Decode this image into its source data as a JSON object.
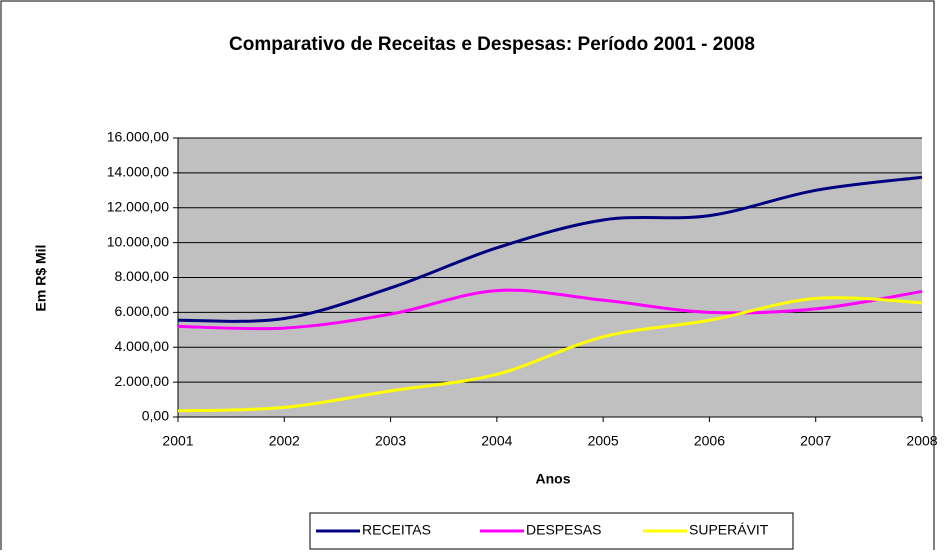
{
  "chart_data": {
    "type": "line",
    "title": "Comparativo de Receitas e Despesas: Período 2001 - 2008",
    "x_label": "Anos",
    "y_label": "Em R$ Mil",
    "x": [
      2001,
      2002,
      2003,
      2004,
      2005,
      2006,
      2007,
      2008
    ],
    "series": [
      {
        "name": "RECEITAS",
        "color": "#000080",
        "values": [
          5550,
          5650,
          7400,
          9700,
          11300,
          11550,
          13000,
          13750
        ]
      },
      {
        "name": "DESPESAS",
        "color": "#ff00ff",
        "values": [
          5200,
          5100,
          5900,
          7250,
          6700,
          6000,
          6200,
          7200
        ]
      },
      {
        "name": "SUPERÁVIT",
        "color": "#ffff00",
        "values": [
          350,
          550,
          1500,
          2450,
          4600,
          5550,
          6800,
          6550
        ]
      }
    ],
    "xlim": [
      2001,
      2008
    ],
    "xticks": [
      2001,
      2002,
      2003,
      2004,
      2005,
      2006,
      2007,
      2008
    ],
    "ylim": [
      0,
      16000
    ],
    "yticks": [
      {
        "value": 0,
        "label": "0,00"
      },
      {
        "value": 2000,
        "label": "2.000,00"
      },
      {
        "value": 4000,
        "label": "4.000,00"
      },
      {
        "value": 6000,
        "label": "6.000,00"
      },
      {
        "value": 8000,
        "label": "8.000,00"
      },
      {
        "value": 10000,
        "label": "10.000,00"
      },
      {
        "value": 12000,
        "label": "12.000,00"
      },
      {
        "value": 14000,
        "label": "14.000,00"
      },
      {
        "value": 16000,
        "label": "16.000,00"
      }
    ],
    "grid": true,
    "plot_background": "#c0c0c0",
    "legend": "bottom"
  }
}
